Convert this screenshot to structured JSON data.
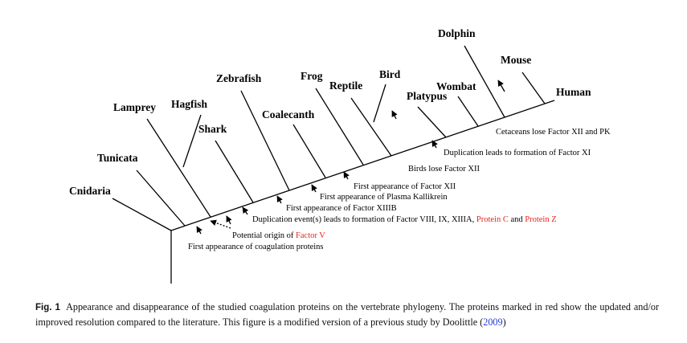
{
  "diagram": {
    "taxa": [
      "Cnidaria",
      "Tunicata",
      "Lamprey",
      "Hagfish",
      "Shark",
      "Zebrafish",
      "Coalecanth",
      "Frog",
      "Reptile",
      "Bird",
      "Platypus",
      "Wombat",
      "Dolphin",
      "Mouse",
      "Human"
    ],
    "annotations": [
      {
        "text": "Cetaceans lose Factor XII and PK"
      },
      {
        "text": "Duplication leads to formation of Factor XI"
      },
      {
        "text": "Birds lose Factor XII"
      },
      {
        "text": "First appearance of Factor XII"
      },
      {
        "text": "First appearance of Plasma Kallikrein"
      },
      {
        "text": "First appearance of Factor XIIIB"
      },
      {
        "parts": [
          "Duplication event(s) leads to formation of Factor VIII, IX, XIIIA, ",
          "Protein C",
          " and ",
          "Protein Z"
        ]
      },
      {
        "parts": [
          "Potential origin of ",
          "Factor V"
        ]
      },
      {
        "text": "First appearance of coagulation proteins"
      }
    ]
  },
  "caption": {
    "label": "Fig. 1",
    "text": "Appearance and disappearance of the studied coagulation proteins on the vertebrate phylogeny. The proteins marked in red show the updated and/or improved resolution compared to the literature. This figure is a modified version of a previous study by Doolittle (",
    "link": "2009",
    "end": ")"
  }
}
